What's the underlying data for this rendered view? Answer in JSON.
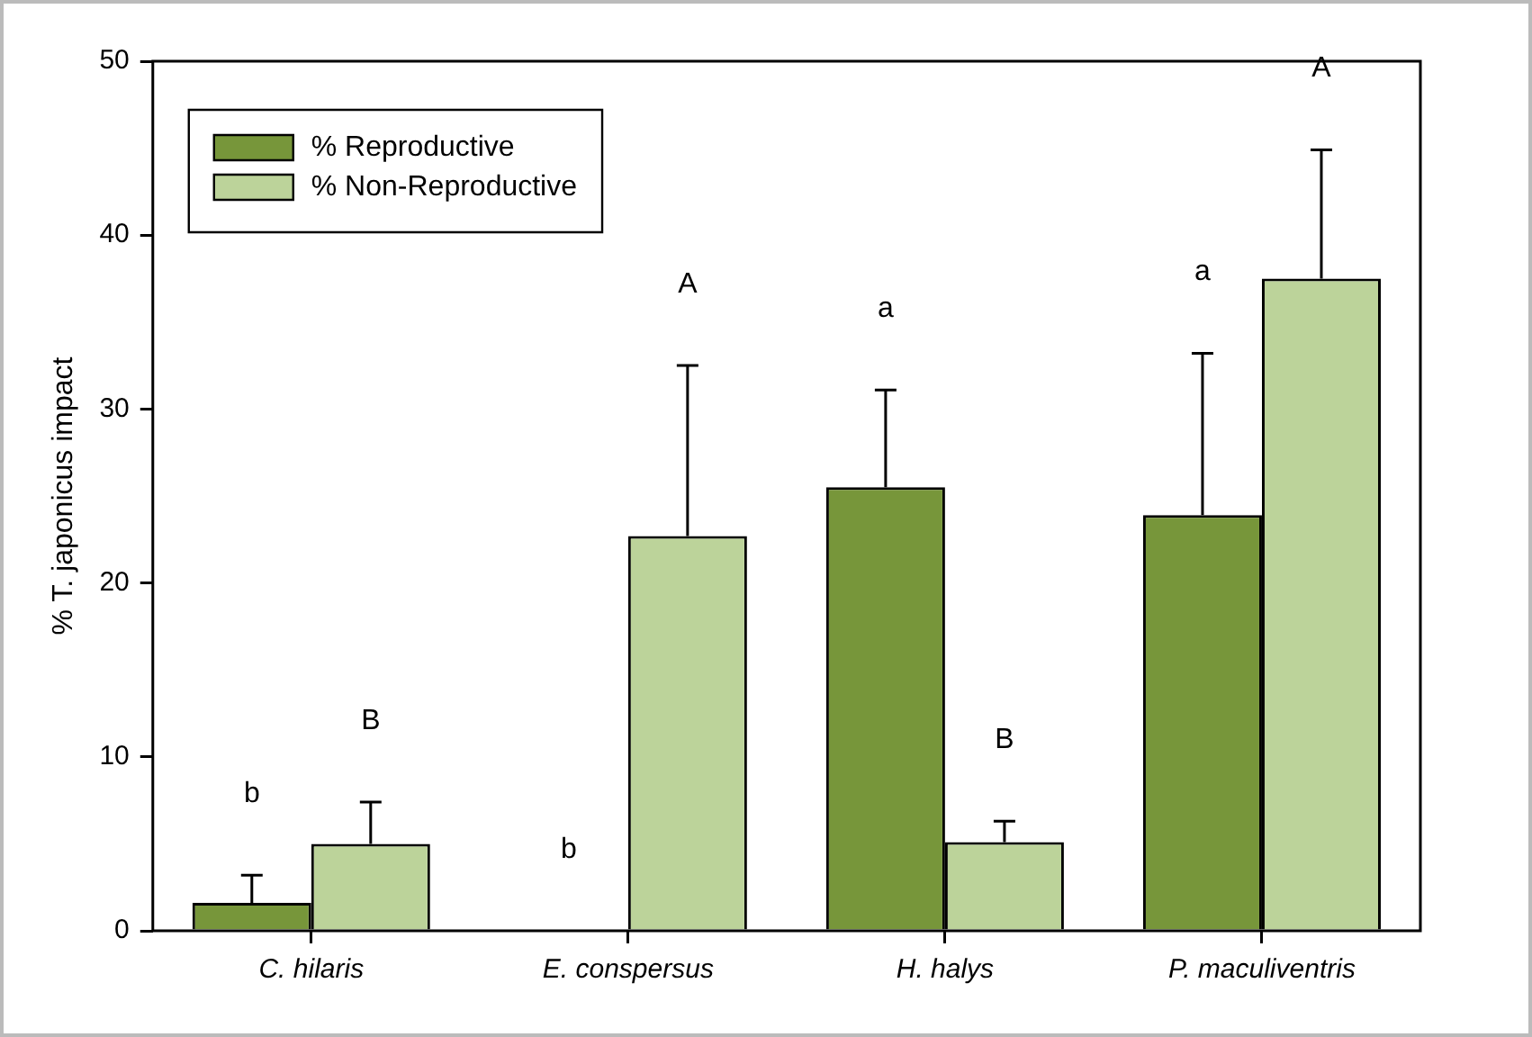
{
  "chart_data": {
    "type": "bar",
    "ylabel": "% T. japonicus impact",
    "categories": [
      "C. hilaris",
      "E. conspersus",
      "H. halys",
      "P. maculiventris"
    ],
    "series": [
      {
        "name": "% Reproductive",
        "color": "#77963a",
        "values": [
          1.6,
          0,
          25.5,
          23.9
        ],
        "errors": [
          [
            1.6,
            3.2
          ],
          null,
          [
            25.5,
            31.1
          ],
          [
            23.9,
            33.2
          ]
        ]
      },
      {
        "name": "% Non-Reproductive",
        "color": "#bcd39a",
        "values": [
          5.0,
          22.7,
          5.1,
          37.5
        ],
        "errors": [
          [
            5.0,
            7.4
          ],
          [
            22.7,
            32.5
          ],
          [
            5.1,
            6.3
          ],
          [
            37.5,
            44.9
          ]
        ]
      }
    ],
    "annotations": [
      "b",
      "B",
      "b",
      "A",
      "a",
      "B",
      "a",
      "A"
    ],
    "ylim": [
      0,
      50
    ],
    "yticks": [
      0,
      10,
      20,
      30,
      40,
      50
    ],
    "grid": false,
    "legend": "top left"
  }
}
